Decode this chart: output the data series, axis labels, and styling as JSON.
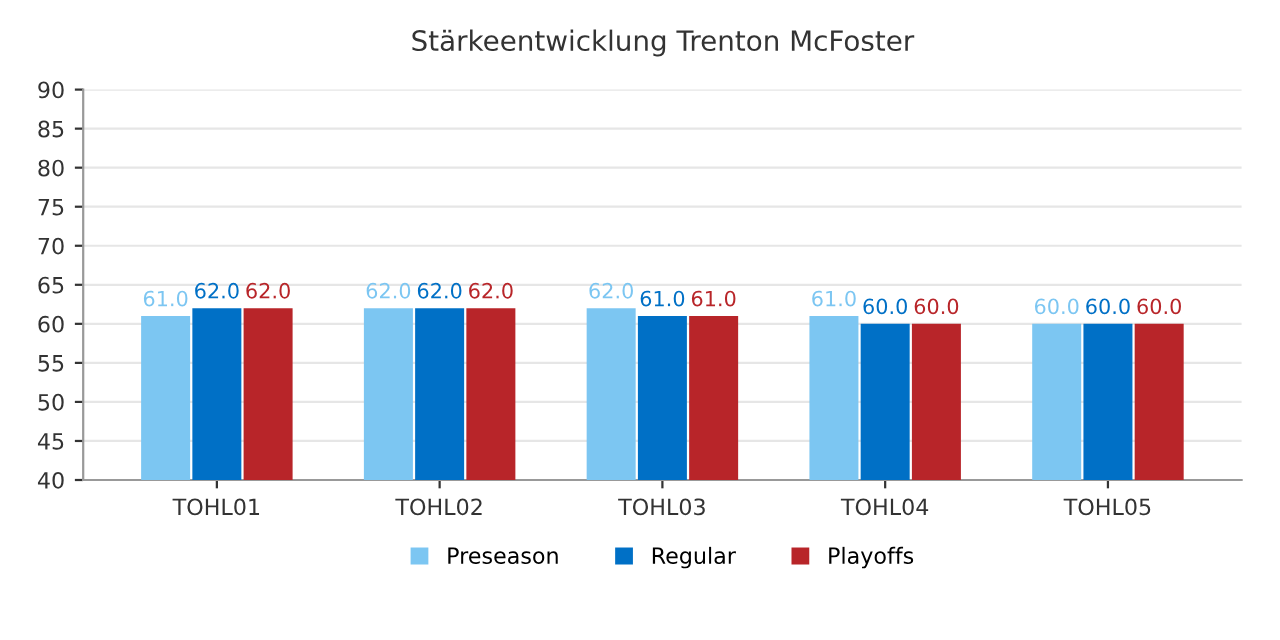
{
  "chart_data": {
    "type": "bar",
    "title": "Stärkeentwicklung Trenton McFoster",
    "categories": [
      "TOHL01",
      "TOHL02",
      "TOHL03",
      "TOHL04",
      "TOHL05"
    ],
    "series": [
      {
        "name": "Preseason",
        "color": "#7cc6f2",
        "values": [
          61,
          62,
          62,
          61,
          60
        ],
        "value_labels": [
          "61.0",
          "62.0",
          "62.0",
          "61.0",
          "60.0"
        ]
      },
      {
        "name": "Regular",
        "color": "#0070c6",
        "values": [
          62,
          62,
          61,
          60,
          60
        ],
        "value_labels": [
          "62.0",
          "62.0",
          "61.0",
          "60.0",
          "60.0"
        ]
      },
      {
        "name": "Playoffs",
        "color": "#b82529",
        "values": [
          62,
          62,
          61,
          60,
          60
        ],
        "value_labels": [
          "62.0",
          "62.0",
          "61.0",
          "60.0",
          "60.0"
        ]
      }
    ],
    "ylim": [
      40,
      90
    ],
    "yticks": [
      40,
      45,
      50,
      55,
      60,
      65,
      70,
      75,
      80,
      85,
      90
    ],
    "grid": "y",
    "legend": "bottom"
  }
}
